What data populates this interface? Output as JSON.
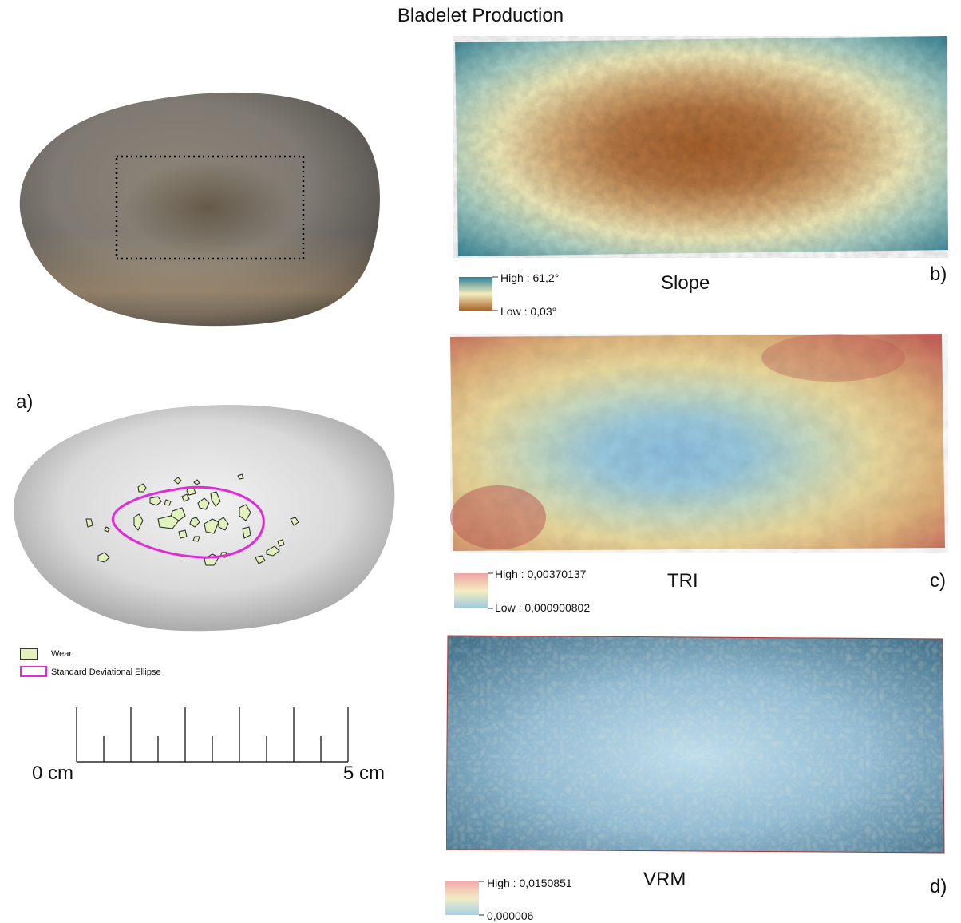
{
  "title": "Bladelet Production",
  "panel_a": {
    "letter": "a)",
    "legend": {
      "wear_label": "Wear",
      "ellipse_label": "Standard Deviational Ellipse"
    },
    "scale": {
      "start_label": "0 cm",
      "end_label": "5 cm"
    },
    "colors": {
      "wear": "#e3f2bd",
      "ellipse": "#e02bd8"
    }
  },
  "panel_b": {
    "letter": "b)",
    "title": "Slope",
    "legend": {
      "high": "High : 61,2°",
      "low": "Low : 0,03°"
    },
    "colors": {
      "high": "#2d7f96",
      "mid": "#f3edbc",
      "low": "#a9622c"
    }
  },
  "panel_c": {
    "letter": "c)",
    "title": "TRI",
    "legend": {
      "high": "High : 0,00370137",
      "low": "Low : 0,000900802"
    },
    "colors": {
      "high": "#f0a3a3",
      "mid": "#f5ecc0",
      "low": "#9ccbe0"
    }
  },
  "panel_d": {
    "letter": "d)",
    "title": "VRM",
    "legend": {
      "high": "High : 0,0150851",
      "low": "0,000006"
    },
    "colors": {
      "high": "#f4a9ab",
      "mid": "#f3ecc4",
      "low": "#a3d1e8"
    }
  }
}
